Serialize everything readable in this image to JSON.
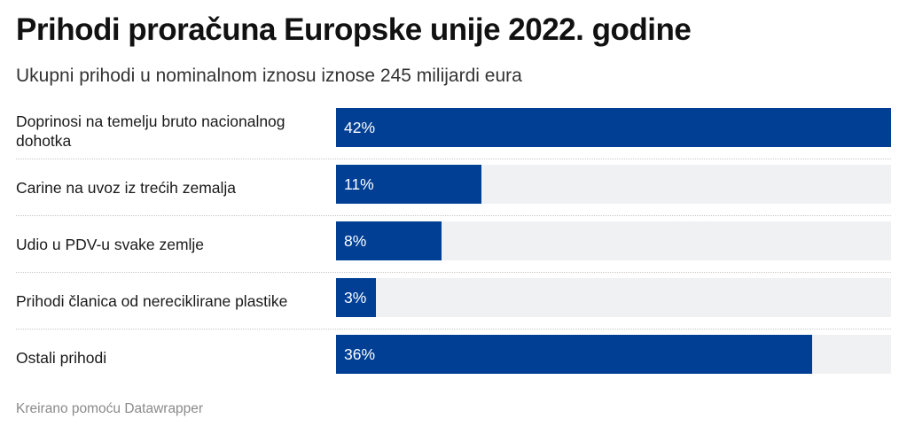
{
  "header": {
    "title": "Prihodi proračuna Europske unije 2022. godine",
    "subtitle": "Ukupni prihodi u nominalnom iznosu iznose 245 milijardi eura"
  },
  "footer": {
    "credit": "Kreirano pomoću Datawrapper"
  },
  "colors": {
    "bar": "#003f94",
    "track": "#f0f1f3"
  },
  "chart_data": {
    "type": "bar",
    "orientation": "horizontal",
    "title": "Prihodi proračuna Europske unije 2022. godine",
    "subtitle": "Ukupni prihodi u nominalnom iznosu iznose 245 milijardi eura",
    "xlim": [
      0,
      42
    ],
    "grid": false,
    "categories": [
      "Doprinosi na temelju bruto nacionalnog dohotka",
      "Carine na uvoz iz trećih zemalja",
      "Udio u PDV-u svake zemlje",
      "Prihodi članica od nereciklirane plastike",
      "Ostali prihodi"
    ],
    "values": [
      42,
      11,
      8,
      3,
      36
    ],
    "value_labels": [
      "42%",
      "11%",
      "8%",
      "3%",
      "36%"
    ]
  }
}
